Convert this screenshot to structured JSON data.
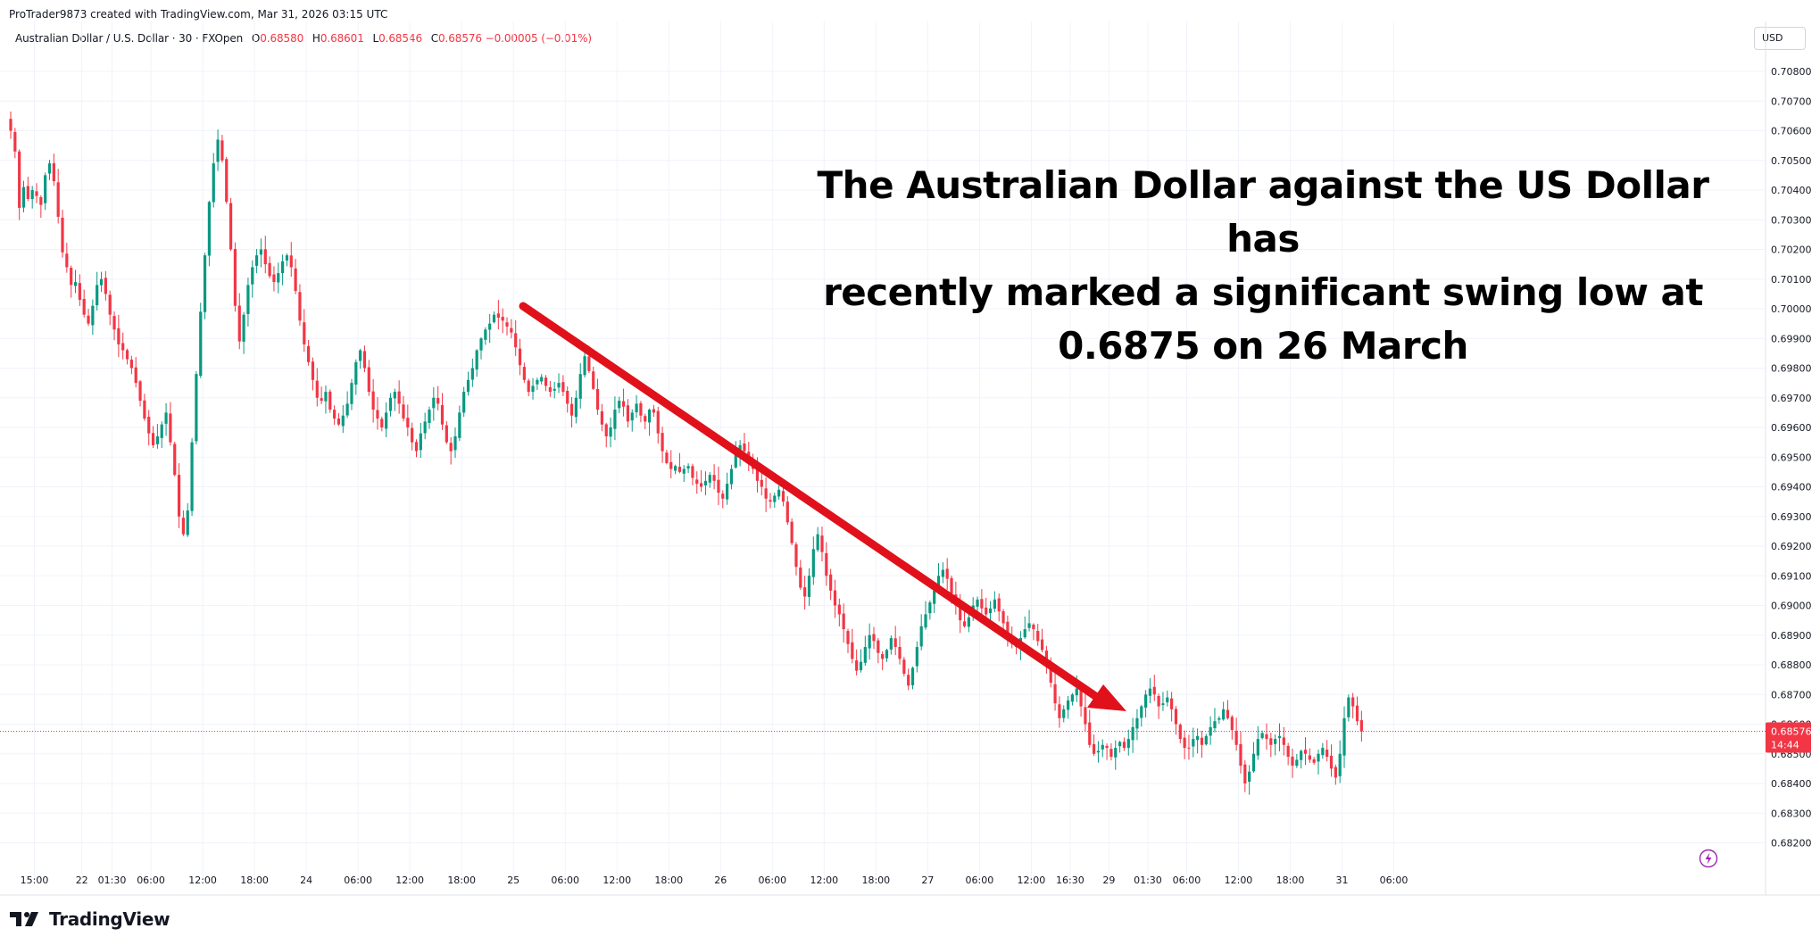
{
  "header": {
    "publisher_line": "ProTrader9873 created with TradingView.com, Mar 31, 2026 03:15 UTC",
    "symbol_title": "Australian Dollar / U.S. Dollar · 30 · FXOpen",
    "ohlc": {
      "o_label": "O",
      "o_value": "0.68580",
      "h_label": "H",
      "h_value": "0.68601",
      "l_label": "L",
      "l_value": "0.68546",
      "c_label": "C",
      "c_value": "0.68576",
      "change": "−0.00005 (−0.01%)"
    }
  },
  "currency_button": "USD",
  "annotation": {
    "line1": "The Australian Dollar against the US Dollar has",
    "line2": "recently marked a significant swing low at",
    "line3": "0.6875 on 26 March"
  },
  "price_tag": {
    "price": "0.68576",
    "countdown": "14:44"
  },
  "branding": {
    "name": "TradingView"
  },
  "colors": {
    "up": "#089981",
    "down": "#f23645",
    "arrow": "#e0111b",
    "price_line": "#f23645"
  },
  "icons": {
    "flash_button": "lightning-icon",
    "logo": "tradingview-logo-icon"
  },
  "chart_data": {
    "type": "candlestick",
    "symbol": "Australian Dollar / U.S. Dollar",
    "interval": "30",
    "ylim": [
      0.6813,
      0.709
    ],
    "y_ticks": [
      "0.70800",
      "0.70700",
      "0.70600",
      "0.70500",
      "0.70400",
      "0.70300",
      "0.70200",
      "0.70100",
      "0.70000",
      "0.69900",
      "0.69800",
      "0.69700",
      "0.69600",
      "0.69500",
      "0.69400",
      "0.69300",
      "0.69200",
      "0.69100",
      "0.69000",
      "0.68900",
      "0.68800",
      "0.68700",
      "0.68600",
      "0.68500",
      "0.68400",
      "0.68300",
      "0.68200"
    ],
    "x_ticks": [
      {
        "label": "15:00",
        "bar": 3
      },
      {
        "label": "22",
        "bar": 14
      },
      {
        "label": "01:30",
        "bar": 21
      },
      {
        "label": "06:00",
        "bar": 30
      },
      {
        "label": "12:00",
        "bar": 42
      },
      {
        "label": "18:00",
        "bar": 54
      },
      {
        "label": "24",
        "bar": 66
      },
      {
        "label": "06:00",
        "bar": 78
      },
      {
        "label": "12:00",
        "bar": 90
      },
      {
        "label": "18:00",
        "bar": 102
      },
      {
        "label": "25",
        "bar": 114
      },
      {
        "label": "06:00",
        "bar": 126
      },
      {
        "label": "12:00",
        "bar": 138
      },
      {
        "label": "18:00",
        "bar": 150
      },
      {
        "label": "26",
        "bar": 162
      },
      {
        "label": "06:00",
        "bar": 174
      },
      {
        "label": "12:00",
        "bar": 186
      },
      {
        "label": "18:00",
        "bar": 198
      },
      {
        "label": "27",
        "bar": 210
      },
      {
        "label": "06:00",
        "bar": 222
      },
      {
        "label": "12:00",
        "bar": 234
      },
      {
        "label": "16:30",
        "bar": 243
      },
      {
        "label": "29",
        "bar": 252
      },
      {
        "label": "01:30",
        "bar": 261
      },
      {
        "label": "06:00",
        "bar": 270
      },
      {
        "label": "12:00",
        "bar": 282
      },
      {
        "label": "18:00",
        "bar": 294
      },
      {
        "label": "31",
        "bar": 306
      },
      {
        "label": "06:00",
        "bar": 318
      }
    ],
    "last_price": 0.68576,
    "closes": [
      0.706,
      0.7053,
      0.7034,
      0.7041,
      0.7037,
      0.704,
      0.7038,
      0.7035,
      0.7045,
      0.7049,
      0.7043,
      0.7031,
      0.7019,
      0.7014,
      0.7008,
      0.7009,
      0.7003,
      0.6998,
      0.6995,
      0.7001,
      0.7008,
      0.701,
      0.7005,
      0.6998,
      0.6993,
      0.6988,
      0.6986,
      0.6983,
      0.698,
      0.6975,
      0.6969,
      0.6963,
      0.6958,
      0.6954,
      0.6957,
      0.6961,
      0.6965,
      0.6955,
      0.6944,
      0.693,
      0.6924,
      0.6932,
      0.6955,
      0.6978,
      0.6999,
      0.7018,
      0.7036,
      0.7049,
      0.7057,
      0.705,
      0.7036,
      0.702,
      0.7001,
      0.6989,
      0.6998,
      0.7008,
      0.7014,
      0.7018,
      0.702,
      0.7015,
      0.7011,
      0.7009,
      0.7012,
      0.7016,
      0.7018,
      0.7014,
      0.7006,
      0.6996,
      0.6988,
      0.6982,
      0.6976,
      0.697,
      0.6969,
      0.6972,
      0.6966,
      0.6963,
      0.6961,
      0.6964,
      0.6968,
      0.6975,
      0.6982,
      0.6986,
      0.698,
      0.6972,
      0.6966,
      0.6963,
      0.696,
      0.6965,
      0.697,
      0.6972,
      0.6968,
      0.6963,
      0.696,
      0.6955,
      0.6952,
      0.6958,
      0.6962,
      0.6966,
      0.697,
      0.6968,
      0.6961,
      0.6955,
      0.6952,
      0.6957,
      0.6965,
      0.6972,
      0.6976,
      0.698,
      0.6986,
      0.699,
      0.6993,
      0.6995,
      0.6998,
      0.6997,
      0.6996,
      0.6994,
      0.6992,
      0.6987,
      0.6981,
      0.6976,
      0.6972,
      0.6974,
      0.6976,
      0.6977,
      0.6974,
      0.6972,
      0.6973,
      0.6975,
      0.6972,
      0.6968,
      0.6964,
      0.697,
      0.6978,
      0.6984,
      0.6979,
      0.6973,
      0.6966,
      0.6961,
      0.6957,
      0.696,
      0.6966,
      0.6969,
      0.6967,
      0.6962,
      0.6965,
      0.6968,
      0.6964,
      0.6962,
      0.6966,
      0.6965,
      0.6958,
      0.6952,
      0.6948,
      0.6946,
      0.6947,
      0.6945,
      0.6946,
      0.6947,
      0.6943,
      0.6941,
      0.694,
      0.6942,
      0.6944,
      0.6942,
      0.6938,
      0.6936,
      0.6941,
      0.6946,
      0.6951,
      0.6954,
      0.6952,
      0.6948,
      0.6946,
      0.6942,
      0.694,
      0.6936,
      0.6935,
      0.6937,
      0.6939,
      0.6935,
      0.6928,
      0.6921,
      0.6913,
      0.6906,
      0.6903,
      0.691,
      0.6919,
      0.6924,
      0.6918,
      0.691,
      0.6905,
      0.69,
      0.6897,
      0.6892,
      0.6887,
      0.6882,
      0.6878,
      0.6881,
      0.6886,
      0.689,
      0.6888,
      0.6884,
      0.6882,
      0.6885,
      0.6889,
      0.6886,
      0.6882,
      0.6877,
      0.6873,
      0.6879,
      0.6886,
      0.6893,
      0.6897,
      0.6901,
      0.6905,
      0.691,
      0.6912,
      0.6909,
      0.6904,
      0.69,
      0.6895,
      0.6893,
      0.6896,
      0.69,
      0.6902,
      0.6899,
      0.6897,
      0.6899,
      0.6902,
      0.6898,
      0.6894,
      0.689,
      0.6887,
      0.6886,
      0.6889,
      0.6892,
      0.6894,
      0.6892,
      0.6888,
      0.6885,
      0.688,
      0.6874,
      0.6867,
      0.6862,
      0.6865,
      0.6868,
      0.687,
      0.6872,
      0.6866,
      0.686,
      0.6853,
      0.685,
      0.6851,
      0.6853,
      0.6852,
      0.6849,
      0.6852,
      0.6854,
      0.6852,
      0.6855,
      0.6859,
      0.6862,
      0.6866,
      0.687,
      0.6872,
      0.687,
      0.6866,
      0.6867,
      0.6869,
      0.6865,
      0.686,
      0.6855,
      0.6852,
      0.6852,
      0.6855,
      0.6856,
      0.6853,
      0.6856,
      0.6859,
      0.6861,
      0.6862,
      0.6865,
      0.6862,
      0.6858,
      0.6853,
      0.6846,
      0.684,
      0.6844,
      0.685,
      0.6855,
      0.6857,
      0.6855,
      0.6853,
      0.6855,
      0.6856,
      0.6853,
      0.6849,
      0.6846,
      0.6848,
      0.6851,
      0.685,
      0.6848,
      0.6847,
      0.685,
      0.6852,
      0.6849,
      0.6845,
      0.6842,
      0.685,
      0.6862,
      0.6869,
      0.6866,
      0.6861,
      0.68576
    ]
  }
}
